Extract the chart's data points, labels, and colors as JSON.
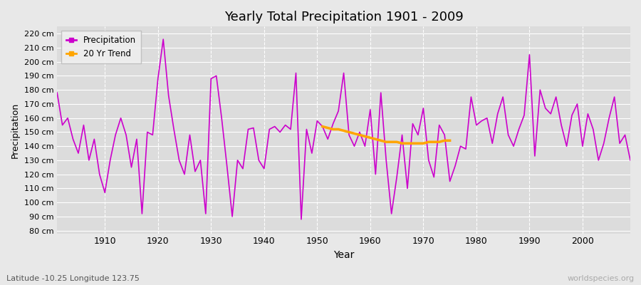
{
  "title": "Yearly Total Precipitation 1901 - 2009",
  "xlabel": "Year",
  "ylabel": "Precipitation",
  "subtitle": "Latitude -10.25 Longitude 123.75",
  "watermark": "worldspecies.org",
  "ylim": [
    78,
    225
  ],
  "ytick_vals": [
    80,
    90,
    100,
    110,
    120,
    130,
    140,
    150,
    160,
    170,
    180,
    190,
    200,
    210,
    220
  ],
  "ytick_labels": [
    "80 cm",
    "90 cm",
    "100 cm",
    "110 cm",
    "120 cm",
    "130 cm",
    "140 cm",
    "150 cm",
    "160 cm",
    "170 cm",
    "180 cm",
    "190 cm",
    "200 cm",
    "210 cm",
    "220 cm"
  ],
  "precip_color": "#CC00CC",
  "trend_color": "#FFA500",
  "bg_color": "#E8E8E8",
  "plot_bg_color": "#DCDCDC",
  "grid_color": "#FFFFFF",
  "years": [
    1901,
    1902,
    1903,
    1904,
    1905,
    1906,
    1907,
    1908,
    1909,
    1910,
    1911,
    1912,
    1913,
    1914,
    1915,
    1916,
    1917,
    1918,
    1919,
    1920,
    1921,
    1922,
    1923,
    1924,
    1925,
    1926,
    1927,
    1928,
    1929,
    1930,
    1931,
    1932,
    1933,
    1934,
    1935,
    1936,
    1937,
    1938,
    1939,
    1940,
    1941,
    1942,
    1943,
    1944,
    1945,
    1946,
    1947,
    1948,
    1949,
    1950,
    1951,
    1952,
    1953,
    1954,
    1955,
    1956,
    1957,
    1958,
    1959,
    1960,
    1961,
    1962,
    1963,
    1964,
    1965,
    1966,
    1967,
    1968,
    1969,
    1970,
    1971,
    1972,
    1973,
    1974,
    1975,
    1976,
    1977,
    1978,
    1979,
    1980,
    1981,
    1982,
    1983,
    1984,
    1985,
    1986,
    1987,
    1988,
    1989,
    1990,
    1991,
    1992,
    1993,
    1994,
    1995,
    1996,
    1997,
    1998,
    1999,
    2000,
    2001,
    2002,
    2003,
    2004,
    2005,
    2006,
    2007,
    2008,
    2009
  ],
  "precip": [
    178,
    155,
    160,
    145,
    135,
    155,
    130,
    145,
    120,
    107,
    130,
    148,
    160,
    148,
    125,
    145,
    92,
    150,
    148,
    188,
    216,
    176,
    152,
    130,
    120,
    148,
    122,
    130,
    92,
    188,
    190,
    160,
    126,
    90,
    130,
    124,
    152,
    153,
    130,
    124,
    152,
    154,
    150,
    155,
    152,
    192,
    88,
    152,
    135,
    158,
    154,
    145,
    156,
    165,
    192,
    148,
    140,
    150,
    140,
    166,
    120,
    178,
    130,
    92,
    118,
    148,
    110,
    156,
    148,
    167,
    130,
    118,
    155,
    148,
    115,
    126,
    140,
    138,
    175,
    155,
    158,
    160,
    142,
    163,
    175,
    148,
    140,
    152,
    162,
    205,
    133,
    180,
    167,
    163,
    175,
    155,
    140,
    162,
    170,
    140,
    163,
    152,
    130,
    142,
    160,
    175,
    142,
    148,
    130
  ],
  "trend_years": [
    1951,
    1952,
    1953,
    1954,
    1955,
    1956,
    1957,
    1958,
    1959,
    1960,
    1961,
    1962,
    1963,
    1964,
    1965,
    1966,
    1967,
    1968,
    1969,
    1970,
    1971,
    1972,
    1973,
    1974,
    1975
  ],
  "trend_vals": [
    154,
    153,
    152,
    152,
    151,
    150,
    149,
    148,
    147,
    146,
    145,
    144,
    143,
    143,
    143,
    142,
    142,
    142,
    142,
    142,
    143,
    143,
    143,
    144,
    144
  ]
}
